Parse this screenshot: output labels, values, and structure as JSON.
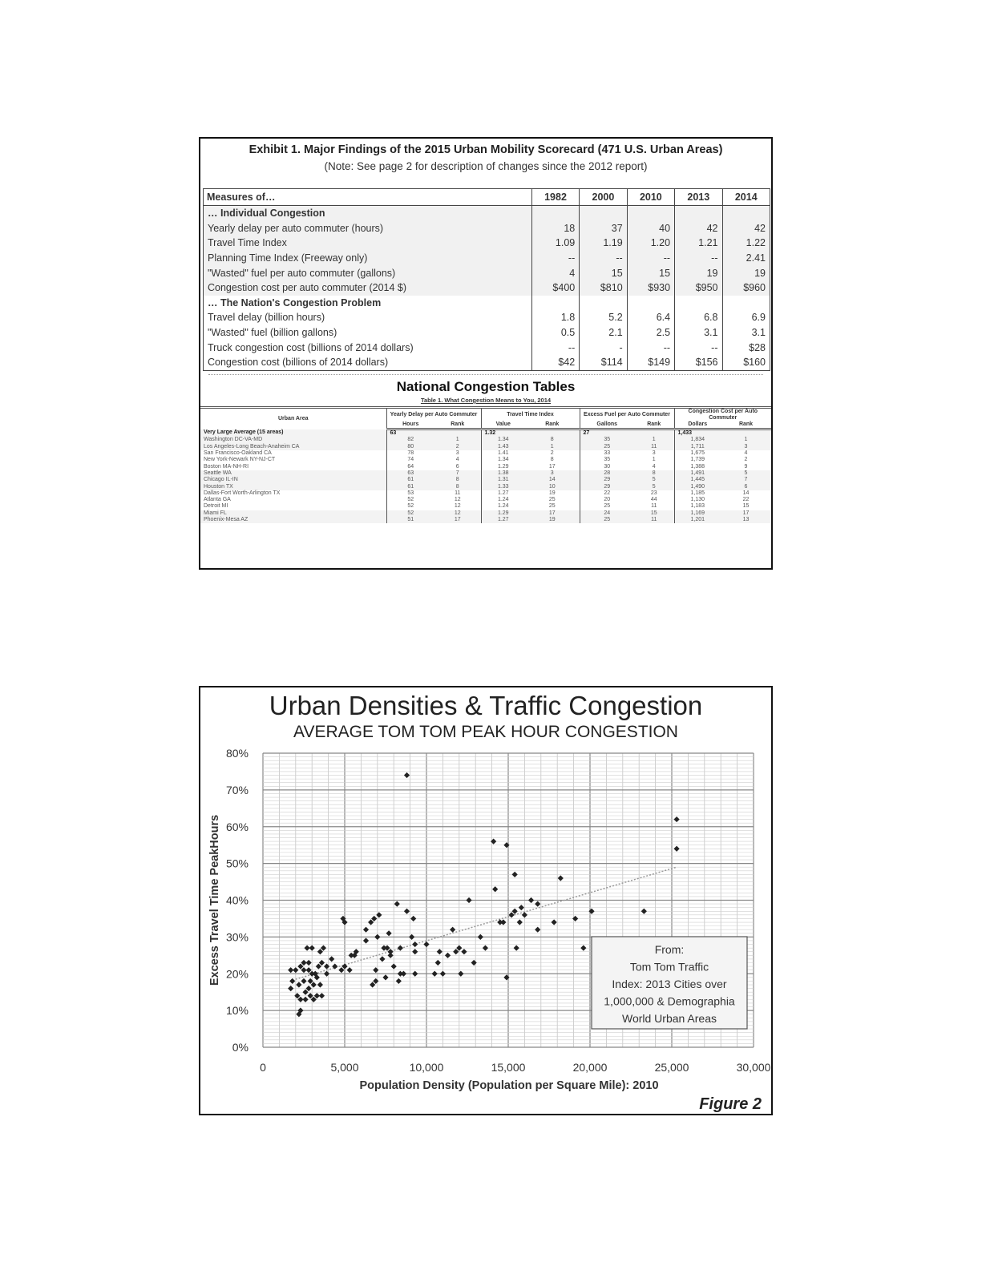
{
  "exhibit": {
    "title": "Exhibit 1.  Major Findings of the 2015 Urban Mobility Scorecard (471 U.S. Urban Areas)",
    "note": "(Note:  See page 2 for description of changes since the 2012 report)",
    "headers": [
      "Measures of…",
      "1982",
      "2000",
      "2010",
      "2013",
      "2014"
    ],
    "rows": [
      [
        "… Individual Congestion",
        "",
        "",
        "",
        "",
        ""
      ],
      [
        "Yearly delay per auto commuter (hours)",
        "18",
        "37",
        "40",
        "42",
        "42"
      ],
      [
        "Travel Time Index",
        "1.09",
        "1.19",
        "1.20",
        "1.21",
        "1.22"
      ],
      [
        "Planning Time Index (Freeway only)",
        "--",
        "--",
        "--",
        "--",
        "2.41"
      ],
      [
        " \"Wasted\" fuel per auto commuter (gallons)",
        "4",
        "15",
        "15",
        "19",
        "19"
      ],
      [
        "Congestion cost per auto commuter (2014 $)",
        "$400",
        "$810",
        "$930",
        "$950",
        "$960"
      ],
      [
        "… The Nation's Congestion Problem",
        "",
        "",
        "",
        "",
        ""
      ],
      [
        "Travel delay (billion hours)",
        "1.8",
        "5.2",
        "6.4",
        "6.8",
        "6.9"
      ],
      [
        "\"Wasted\" fuel (billion gallons)",
        "0.5",
        "2.1",
        "2.5",
        "3.1",
        "3.1"
      ],
      [
        "Truck congestion cost (billions of 2014 dollars)",
        "--",
        "-",
        "--",
        "--",
        "$28"
      ],
      [
        "Congestion cost (billions of 2014 dollars)",
        "$42",
        "$114",
        "$149",
        "$156",
        "$160"
      ]
    ]
  },
  "national_tables": {
    "title": "National Congestion Tables",
    "table_title": "Table 1.  What Congestion Means to You, 2014",
    "group_headers": [
      "Urban Area",
      "Yearly Delay per Auto Commuter",
      "Travel Time Index",
      "Excess Fuel per Auto Commuter",
      "Congestion Cost per Auto Commuter"
    ],
    "sub_headers": [
      "Hours",
      "Rank",
      "Value",
      "Rank",
      "Gallons",
      "Rank",
      "Dollars",
      "Rank"
    ],
    "rows": [
      [
        "Very Large Average (15 areas)",
        "63",
        "",
        "1.32",
        "",
        "27",
        "",
        "1,433",
        ""
      ],
      [
        "Washington DC-VA-MD",
        "82",
        "1",
        "1.34",
        "8",
        "35",
        "1",
        "1,834",
        "1"
      ],
      [
        "Los Angeles-Long Beach-Anaheim CA",
        "80",
        "2",
        "1.43",
        "1",
        "25",
        "11",
        "1,711",
        "3"
      ],
      [
        "San Francisco-Oakland CA",
        "78",
        "3",
        "1.41",
        "2",
        "33",
        "3",
        "1,675",
        "4"
      ],
      [
        "New York-Newark NY-NJ-CT",
        "74",
        "4",
        "1.34",
        "8",
        "35",
        "1",
        "1,739",
        "2"
      ],
      [
        "Boston MA-NH-RI",
        "64",
        "6",
        "1.29",
        "17",
        "30",
        "4",
        "1,388",
        "9"
      ],
      [
        "Seattle WA",
        "63",
        "7",
        "1.38",
        "3",
        "28",
        "8",
        "1,491",
        "5"
      ],
      [
        "Chicago IL-IN",
        "61",
        "8",
        "1.31",
        "14",
        "29",
        "5",
        "1,445",
        "7"
      ],
      [
        "Houston TX",
        "61",
        "8",
        "1.33",
        "10",
        "29",
        "5",
        "1,490",
        "6"
      ],
      [
        "Dallas-Fort Worth-Arlington TX",
        "53",
        "11",
        "1.27",
        "19",
        "22",
        "23",
        "1,185",
        "14"
      ],
      [
        "Atlanta GA",
        "52",
        "12",
        "1.24",
        "25",
        "20",
        "44",
        "1,130",
        "22"
      ],
      [
        "Detroit MI",
        "52",
        "12",
        "1.24",
        "25",
        "25",
        "11",
        "1,183",
        "15"
      ],
      [
        "Miami FL",
        "52",
        "12",
        "1.29",
        "17",
        "24",
        "15",
        "1,169",
        "17"
      ],
      [
        "Phoenix-Mesa AZ",
        "51",
        "17",
        "1.27",
        "19",
        "25",
        "11",
        "1,201",
        "13"
      ]
    ]
  },
  "chart_data": {
    "type": "scatter",
    "title": "Urban Densities & Traffic Congestion",
    "subtitle": "AVERAGE TOM TOM PEAK HOUR CONGESTION",
    "xlabel": "Population Density (Population per Square Mile): 2010",
    "ylabel": "Excess Travel Time PeakHours",
    "xlim": [
      0,
      30000
    ],
    "ylim": [
      0,
      80
    ],
    "x_ticks": [
      "0",
      "5,000",
      "10,000",
      "15,000",
      "20,000",
      "25,000",
      "30,000"
    ],
    "y_ticks": [
      "0%",
      "10%",
      "20%",
      "30%",
      "40%",
      "50%",
      "60%",
      "70%",
      "80%"
    ],
    "grid": true,
    "trendline": {
      "style": "dotted",
      "from": [
        2000,
        18.5
      ],
      "to": [
        25300,
        49
      ]
    },
    "annotation": [
      "From:",
      "Tom Tom Traffic",
      "Index: 2013 Cities over",
      "1,000,000 & Demographia",
      "World Urban Areas"
    ],
    "figure_label": "Figure 2",
    "points": [
      [
        8800,
        74
      ],
      [
        25300,
        62
      ],
      [
        25300,
        54
      ],
      [
        14100,
        56
      ],
      [
        14900,
        55
      ],
      [
        15400,
        47
      ],
      [
        18200,
        46
      ],
      [
        14200,
        43
      ],
      [
        12600,
        40
      ],
      [
        16400,
        40
      ],
      [
        16800,
        39
      ],
      [
        8200,
        39
      ],
      [
        15800,
        38
      ],
      [
        15400,
        37
      ],
      [
        16000,
        36
      ],
      [
        23300,
        37
      ],
      [
        20100,
        37
      ],
      [
        15200,
        36
      ],
      [
        15700,
        34
      ],
      [
        14700,
        34
      ],
      [
        14500,
        34
      ],
      [
        17800,
        34
      ],
      [
        19100,
        35
      ],
      [
        16800,
        32
      ],
      [
        15500,
        27
      ],
      [
        14900,
        19
      ],
      [
        19600,
        27
      ],
      [
        4900,
        35
      ],
      [
        5000,
        34
      ],
      [
        6800,
        35
      ],
      [
        7100,
        36
      ],
      [
        6600,
        34
      ],
      [
        9200,
        35
      ],
      [
        8800,
        37
      ],
      [
        6300,
        32
      ],
      [
        7000,
        30
      ],
      [
        13300,
        30
      ],
      [
        13600,
        27
      ],
      [
        6300,
        29
      ],
      [
        7700,
        31
      ],
      [
        9100,
        30
      ],
      [
        9300,
        28
      ],
      [
        8400,
        27
      ],
      [
        10000,
        28
      ],
      [
        11600,
        32
      ],
      [
        11300,
        25
      ],
      [
        12000,
        27
      ],
      [
        11800,
        26
      ],
      [
        12300,
        26
      ],
      [
        12900,
        23
      ],
      [
        10700,
        23
      ],
      [
        10500,
        20
      ],
      [
        10800,
        26
      ],
      [
        11000,
        20
      ],
      [
        12100,
        20
      ],
      [
        9300,
        20
      ],
      [
        9300,
        26
      ],
      [
        7400,
        27
      ],
      [
        7600,
        27
      ],
      [
        7800,
        25
      ],
      [
        7300,
        24
      ],
      [
        6900,
        21
      ],
      [
        8400,
        20
      ],
      [
        8600,
        20
      ],
      [
        6900,
        18
      ],
      [
        7500,
        19
      ],
      [
        8300,
        18
      ],
      [
        8000,
        22
      ],
      [
        7800,
        26
      ],
      [
        6700,
        17
      ],
      [
        5400,
        25
      ],
      [
        5600,
        25
      ],
      [
        5700,
        26
      ],
      [
        5000,
        22
      ],
      [
        5300,
        21
      ],
      [
        4400,
        22
      ],
      [
        4800,
        21
      ],
      [
        4200,
        24
      ],
      [
        3900,
        22
      ],
      [
        3500,
        26
      ],
      [
        3700,
        27
      ],
      [
        3400,
        22
      ],
      [
        3600,
        23
      ],
      [
        3900,
        20
      ],
      [
        3000,
        27
      ],
      [
        2700,
        27
      ],
      [
        2800,
        23
      ],
      [
        2500,
        23
      ],
      [
        2500,
        21
      ],
      [
        2300,
        22
      ],
      [
        2800,
        21
      ],
      [
        3000,
        20
      ],
      [
        3200,
        20
      ],
      [
        3300,
        19
      ],
      [
        3500,
        17
      ],
      [
        3600,
        14
      ],
      [
        2900,
        18
      ],
      [
        2500,
        18
      ],
      [
        2200,
        17
      ],
      [
        1700,
        16
      ],
      [
        1700,
        21
      ],
      [
        2000,
        21
      ],
      [
        1800,
        18
      ],
      [
        2300,
        13
      ],
      [
        2100,
        14
      ],
      [
        2600,
        13
      ],
      [
        2600,
        15
      ],
      [
        2900,
        14
      ],
      [
        3100,
        13
      ],
      [
        2800,
        16
      ],
      [
        2300,
        10
      ],
      [
        2200,
        9
      ],
      [
        3100,
        17
      ],
      [
        3300,
        14
      ]
    ]
  }
}
